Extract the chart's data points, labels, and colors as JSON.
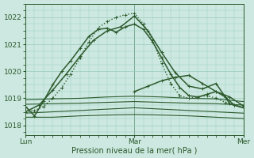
{
  "bg_color": "#cce8e0",
  "grid_color": "#99ccbb",
  "line_color": "#2d5a2d",
  "ylabel_ticks": [
    1018,
    1019,
    1020,
    1021,
    1022
  ],
  "ylim": [
    1017.65,
    1022.5
  ],
  "xlim": [
    0,
    48
  ],
  "xlabel": "Pression niveau de la mer( hPa )",
  "xtick_positions": [
    0,
    24,
    48
  ],
  "xtick_labels": [
    "Lun",
    "Mar",
    "Mer"
  ],
  "series": [
    {
      "x": [
        0,
        2,
        4,
        6,
        8,
        10,
        12,
        14,
        16,
        18,
        20,
        22,
        24,
        26,
        28,
        30,
        32,
        34,
        36,
        38,
        40,
        42,
        44,
        46,
        48
      ],
      "y": [
        1018.7,
        1018.35,
        1018.9,
        1019.5,
        1020.0,
        1020.4,
        1020.85,
        1021.3,
        1021.55,
        1021.6,
        1021.45,
        1021.65,
        1021.75,
        1021.55,
        1021.1,
        1020.5,
        1019.9,
        1019.4,
        1019.1,
        1019.05,
        1019.15,
        1019.25,
        1019.05,
        1018.75,
        1018.65
      ],
      "marker": true,
      "lw": 1.1
    },
    {
      "x": [
        0,
        3,
        6,
        9,
        12,
        15,
        18,
        21,
        24,
        27,
        30,
        33,
        36,
        39,
        42,
        45,
        48
      ],
      "y": [
        1018.5,
        1018.75,
        1019.3,
        1019.9,
        1020.55,
        1021.15,
        1021.5,
        1021.65,
        1022.05,
        1021.5,
        1020.7,
        1019.95,
        1019.45,
        1019.35,
        1019.55,
        1018.8,
        1018.65
      ],
      "marker": true,
      "lw": 1.1
    },
    {
      "x": [
        0,
        2,
        4,
        6,
        8,
        10,
        12,
        14,
        16,
        18,
        20,
        22,
        24,
        26,
        28,
        30,
        32,
        34,
        36,
        38,
        40,
        42,
        44,
        46,
        48
      ],
      "y": [
        1018.5,
        1018.55,
        1018.7,
        1019.0,
        1019.4,
        1019.9,
        1020.5,
        1021.1,
        1021.6,
        1021.85,
        1022.0,
        1022.1,
        1022.15,
        1021.75,
        1021.15,
        1020.3,
        1019.55,
        1019.1,
        1019.0,
        1019.05,
        1019.1,
        1019.0,
        1018.85,
        1018.75,
        1018.65
      ],
      "marker": true,
      "lw": 1.0,
      "linestyle": "dotted"
    },
    {
      "x": [
        0,
        6,
        12,
        18,
        24,
        30,
        36,
        42,
        48
      ],
      "y": [
        1018.45,
        1018.5,
        1018.55,
        1018.6,
        1018.65,
        1018.6,
        1018.55,
        1018.5,
        1018.45
      ],
      "marker": false,
      "lw": 0.8
    },
    {
      "x": [
        0,
        6,
        12,
        18,
        24,
        30,
        36,
        42,
        48
      ],
      "y": [
        1018.3,
        1018.3,
        1018.35,
        1018.38,
        1018.4,
        1018.38,
        1018.35,
        1018.3,
        1018.25
      ],
      "marker": false,
      "lw": 0.8
    },
    {
      "x": [
        0,
        6,
        12,
        18,
        24,
        30,
        36,
        42,
        48
      ],
      "y": [
        1018.78,
        1018.8,
        1018.82,
        1018.85,
        1018.88,
        1018.85,
        1018.82,
        1018.8,
        1018.75
      ],
      "marker": false,
      "lw": 0.8
    },
    {
      "x": [
        0,
        6,
        12,
        18,
        24,
        30,
        36,
        42,
        48
      ],
      "y": [
        1018.95,
        1018.98,
        1019.0,
        1019.05,
        1019.08,
        1019.05,
        1019.0,
        1018.98,
        1018.88
      ],
      "marker": false,
      "lw": 0.8
    },
    {
      "x": [
        24,
        27,
        30,
        33,
        36,
        39,
        42,
        45,
        48
      ],
      "y": [
        1019.25,
        1019.45,
        1019.65,
        1019.78,
        1019.85,
        1019.55,
        1019.25,
        1019.05,
        1018.72
      ],
      "marker": true,
      "lw": 1.1
    }
  ]
}
